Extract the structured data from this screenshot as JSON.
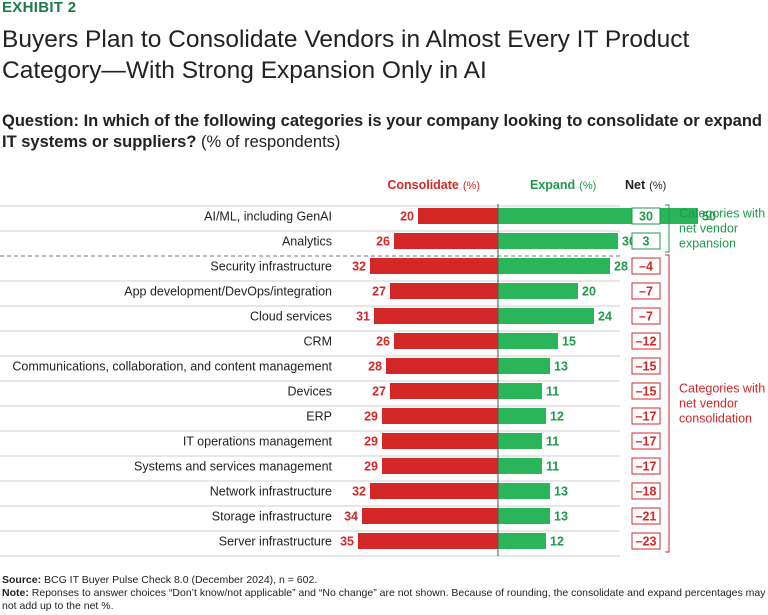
{
  "header": {
    "exhibit": "EXHIBIT 2",
    "title_line1": "Buyers Plan to Consolidate Vendors in Almost Every IT Product",
    "title_line2": "Category—With Strong Expansion Only in AI",
    "question_bold": "Question: In which of the following categories is your company looking to consolidate or expand IT systems or suppliers?",
    "question_unit": "(% of respondents)"
  },
  "chart_data": {
    "type": "bar",
    "title": "Buyers Plan to Consolidate Vendors in Almost Every IT Product Category—With Strong Expansion Only in AI",
    "xlabel": "",
    "ylabel": "",
    "series_labels": {
      "consolidate": "Consolidate",
      "expand": "Expand",
      "net": "Net",
      "unit": "(%)"
    },
    "categories": [
      "AI/ML, including GenAI",
      "Analytics",
      "Security infrastructure",
      "App development/DevOps/integration",
      "Cloud services",
      "CRM",
      "Communications, collaboration, and content management",
      "Devices",
      "ERP",
      "IT operations management",
      "Systems and services management",
      "Network infrastructure",
      "Storage infrastructure",
      "Server infrastructure"
    ],
    "series": [
      {
        "name": "Consolidate",
        "values": [
          20,
          26,
          32,
          27,
          31,
          26,
          28,
          27,
          29,
          29,
          29,
          32,
          34,
          35
        ]
      },
      {
        "name": "Expand",
        "values": [
          50,
          30,
          28,
          20,
          24,
          15,
          13,
          11,
          12,
          11,
          11,
          13,
          13,
          12
        ]
      },
      {
        "name": "Net",
        "values": [
          30,
          3,
          -4,
          -7,
          -7,
          -12,
          -15,
          -15,
          -17,
          -17,
          -17,
          -18,
          -21,
          -23
        ]
      }
    ],
    "groups": [
      {
        "label_lines": [
          "Categories with",
          "net vendor",
          "expansion"
        ],
        "start": 0,
        "end": 1
      },
      {
        "label_lines": [
          "Categories with",
          "net vendor",
          "consolidation"
        ],
        "start": 2,
        "end": 13
      }
    ],
    "colors": {
      "consolidate": "#d42828",
      "expand": "#2ab55a",
      "green_text": "#1f9a4a"
    }
  },
  "footer": {
    "source_label": "Source:",
    "source_text": "BCG IT Buyer Pulse Check 8.0 (December 2024), n = 602.",
    "note_label": "Note:",
    "note_text": "Reponses to answer choices “Don’t know/not applicable” and “No change” are not shown. Because of rounding, the consolidate and expand percentages may not add up to the net %."
  }
}
